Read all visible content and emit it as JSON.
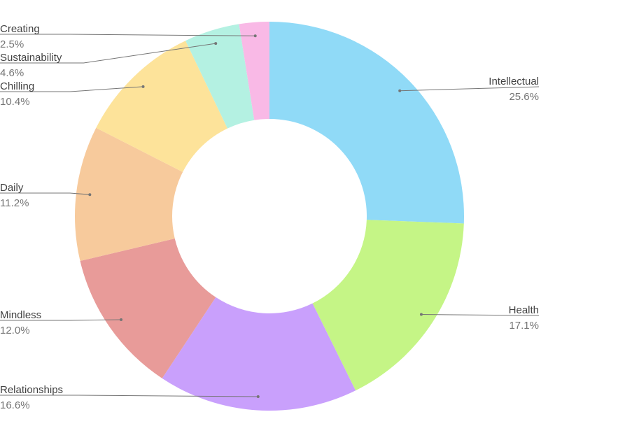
{
  "chart_data": {
    "type": "pie",
    "donut": true,
    "title": "",
    "slices": [
      {
        "label": "Intellectual",
        "value": 25.6,
        "value_label": "25.6%",
        "color": "#90daf7"
      },
      {
        "label": "Health",
        "value": 17.1,
        "value_label": "17.1%",
        "color": "#c5f586"
      },
      {
        "label": "Relationships",
        "value": 16.6,
        "value_label": "16.6%",
        "color": "#c9a0fc"
      },
      {
        "label": "Mindless",
        "value": 12.0,
        "value_label": "12.0%",
        "color": "#e89b99"
      },
      {
        "label": "Daily",
        "value": 11.2,
        "value_label": "11.2%",
        "color": "#f7ca9c"
      },
      {
        "label": "Chilling",
        "value": 10.4,
        "value_label": "10.4%",
        "color": "#fde39a"
      },
      {
        "label": "Sustainability",
        "value": 4.6,
        "value_label": "4.6%",
        "color": "#b4f1e2"
      },
      {
        "label": "Creating",
        "value": 2.5,
        "value_label": "2.5%",
        "color": "#f9b9e6"
      }
    ],
    "start_angle_deg": 0,
    "direction": "clockwise",
    "legend": "none",
    "labels": "outside with leader lines"
  }
}
